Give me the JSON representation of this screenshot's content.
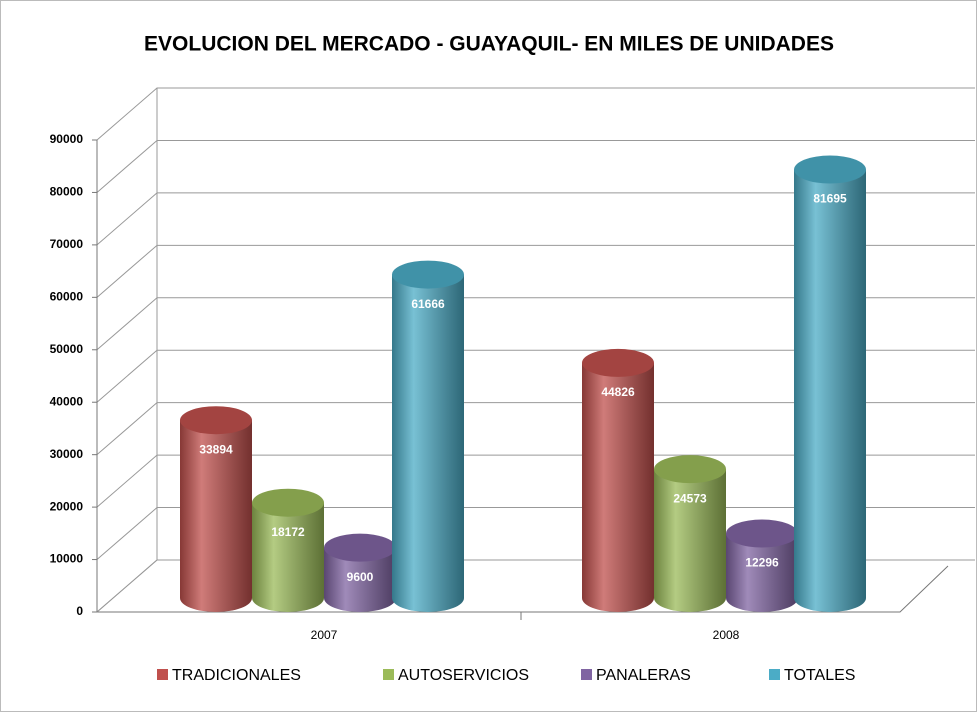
{
  "chart_data": {
    "type": "bar3d",
    "title": "EVOLUCION DEL MERCADO - GUAYAQUIL- EN MILES DE UNIDADES",
    "categories": [
      "2007",
      "2008"
    ],
    "series": [
      {
        "name": "TRADICIONALES",
        "color": "#c0504d",
        "values": [
          33894,
          44826
        ]
      },
      {
        "name": "AUTOSERVICIOS",
        "color": "#9bbb59",
        "values": [
          18172,
          24573
        ]
      },
      {
        "name": "PANALERAS",
        "color": "#8064a2",
        "values": [
          9600,
          12296
        ]
      },
      {
        "name": "TOTALES",
        "color": "#4bacc6",
        "values": [
          61666,
          81695
        ]
      }
    ],
    "ylim": [
      0,
      90000
    ],
    "yticks": [
      0,
      10000,
      20000,
      30000,
      40000,
      50000,
      60000,
      70000,
      80000,
      90000
    ],
    "grid": true,
    "legend": "bottom"
  }
}
